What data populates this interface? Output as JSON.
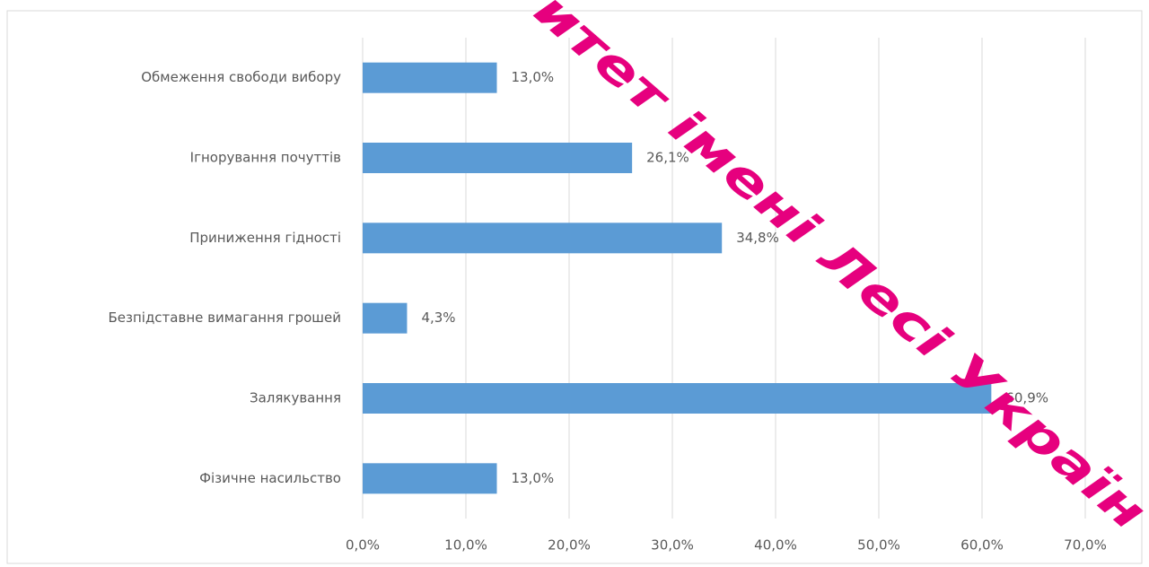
{
  "chart_data": {
    "type": "bar",
    "orientation": "horizontal",
    "categories": [
      "Обмеження свободи вибору",
      "Ігнорування почуттів",
      "Приниження гідності",
      "Безпідставне вимагання грошей",
      "Залякування",
      "Фізичне насильство"
    ],
    "values": [
      13.0,
      26.1,
      34.8,
      4.3,
      60.9,
      13.0
    ],
    "value_labels": [
      "13,0%",
      "26,1%",
      "34,8%",
      "4,3%",
      "60,9%",
      "13,0%"
    ],
    "color": "#5b9bd5",
    "xlim": [
      0,
      75
    ],
    "xticks": [
      {
        "value": 0,
        "label": "0,0%"
      },
      {
        "value": 10,
        "label": "10,0%"
      },
      {
        "value": 20,
        "label": "20,0%"
      },
      {
        "value": 30,
        "label": "30,0%"
      },
      {
        "value": 40,
        "label": "40,0%"
      },
      {
        "value": 50,
        "label": "50,0%"
      },
      {
        "value": 60,
        "label": "60,0%"
      },
      {
        "value": 70,
        "label": "70,0%"
      }
    ],
    "grid": true,
    "watermark": "итет імені Лесі Україн"
  }
}
